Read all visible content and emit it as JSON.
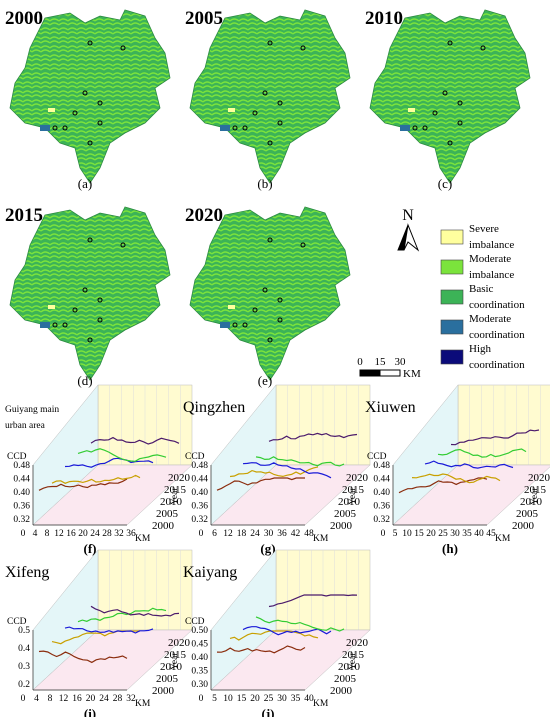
{
  "maps": [
    {
      "year": "2000",
      "label": "(a)"
    },
    {
      "year": "2005",
      "label": "(b)"
    },
    {
      "year": "2010",
      "label": "(c)"
    },
    {
      "year": "2015",
      "label": "(d)"
    },
    {
      "year": "2020",
      "label": "(e)"
    }
  ],
  "compass": "N",
  "scale": {
    "ticks": [
      "0",
      "15",
      "30"
    ],
    "unit": "KM"
  },
  "legend": [
    {
      "name": [
        "Severe",
        "imbalance"
      ],
      "color": "#ffff9e"
    },
    {
      "name": [
        "Moderate",
        "imbalance"
      ],
      "color": "#7be33c"
    },
    {
      "name": [
        "Basic",
        "coordination"
      ],
      "color": "#3cb357"
    },
    {
      "name": [
        "Moderate",
        "coordination"
      ],
      "color": "#2a6f9e"
    },
    {
      "name": [
        "High",
        "coordination"
      ],
      "color": "#0b0b7a"
    }
  ],
  "charts": [
    {
      "title": [
        "Guiyang main",
        "urban area"
      ],
      "ylabel": "CCD",
      "yticks": [
        "0.48",
        "0.44",
        "0.40",
        "0.36",
        "0.32"
      ],
      "xticks": [
        "0",
        "4",
        "8",
        "12",
        "16",
        "20",
        "24",
        "28",
        "32",
        "36"
      ],
      "xunit": "KM",
      "years": [
        "2000",
        "2005",
        "2010",
        "2015",
        "2020"
      ],
      "year_label": "Year",
      "label": "(f)"
    },
    {
      "title": [
        "Qingzhen"
      ],
      "ylabel": "CCD",
      "yticks": [
        "0.48",
        "0.44",
        "0.40",
        "0.36",
        "0.32"
      ],
      "xticks": [
        "0",
        "6",
        "12",
        "18",
        "24",
        "30",
        "36",
        "42",
        "48"
      ],
      "xunit": "KM",
      "years": [
        "2000",
        "2005",
        "2010",
        "2015",
        "2020"
      ],
      "year_label": "Year",
      "label": "(g)"
    },
    {
      "title": [
        "Xiuwen"
      ],
      "ylabel": "CCD",
      "yticks": [
        "0.48",
        "0.44",
        "0.40",
        "0.36",
        "0.32"
      ],
      "xticks": [
        "0",
        "5",
        "10",
        "15",
        "20",
        "25",
        "30",
        "35",
        "40",
        "45"
      ],
      "xunit": "KM",
      "years": [
        "2000",
        "2005",
        "2010",
        "2015",
        "2020"
      ],
      "year_label": "Year",
      "label": "(h)"
    },
    {
      "title": [
        "Xifeng"
      ],
      "ylabel": "CCD",
      "yticks": [
        "0.5",
        "0.4",
        "0.3",
        "0.2"
      ],
      "xticks": [
        "0",
        "4",
        "8",
        "12",
        "16",
        "20",
        "24",
        "28",
        "32"
      ],
      "xunit": "KM",
      "years": [
        "2000",
        "2005",
        "2010",
        "2015",
        "2020"
      ],
      "year_label": "Year",
      "label": "(i)"
    },
    {
      "title": [
        "Kaiyang"
      ],
      "ylabel": "CCD",
      "yticks": [
        "0.50",
        "0.45",
        "0.40",
        "0.35",
        "0.30"
      ],
      "xticks": [
        "0",
        "5",
        "10",
        "15",
        "20",
        "25",
        "30",
        "35",
        "40"
      ],
      "xunit": "KM",
      "years": [
        "2000",
        "2005",
        "2010",
        "2015",
        "2020"
      ],
      "year_label": "Year",
      "label": "(j)"
    }
  ]
}
